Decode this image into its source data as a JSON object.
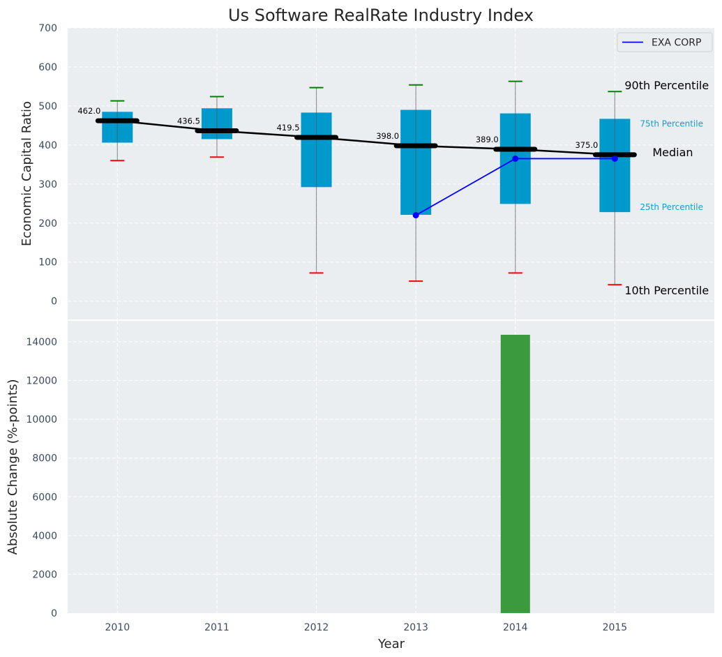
{
  "chart_data": [
    {
      "type": "box",
      "title": "Us Software RealRate Industry Index",
      "xlabel": "",
      "ylabel": "Economic Capital Ratio",
      "ylim": [
        -47,
        700
      ],
      "xlim": [
        2009.5,
        2016
      ],
      "yticks": [
        0,
        100,
        200,
        300,
        400,
        500,
        600,
        700
      ],
      "categories": [
        "2010",
        "2011",
        "2012",
        "2013",
        "2014",
        "2015"
      ],
      "x": [
        2010,
        2011,
        2012,
        2013,
        2014,
        2015
      ],
      "p10": [
        360,
        369,
        72,
        51,
        72,
        42
      ],
      "p25": [
        406,
        415,
        292,
        221,
        249,
        228
      ],
      "median": [
        462.0,
        436.5,
        419.5,
        398.0,
        389.0,
        375.0
      ],
      "p75": [
        485,
        494,
        483,
        490,
        481,
        467
      ],
      "p90": [
        513,
        524,
        547,
        554,
        563,
        537
      ],
      "median_labels": [
        "462.0",
        "436.5",
        "419.5",
        "398.0",
        "389.0",
        "375.0"
      ],
      "series": [
        {
          "name": "EXA CORP",
          "x": [
            2013,
            2014,
            2015
          ],
          "values": [
            220,
            365,
            365
          ],
          "color": "#0000ff"
        }
      ],
      "annotations": {
        "p90": "90th Percentile",
        "p75": "75th Percentile",
        "median": "Median",
        "p25": "25th Percentile",
        "p10": "10th Percentile"
      },
      "legend": {
        "position": "top-right",
        "entries": [
          "EXA CORP"
        ]
      },
      "colors": {
        "box": "#0099cc",
        "p90": "#008000",
        "p10": "#ff0000",
        "median": "#000000",
        "background": "#eaeef0"
      },
      "grid": true
    },
    {
      "type": "bar",
      "xlabel": "Year",
      "ylabel": "Absolute Change (%-points)",
      "ylim": [
        0,
        15080
      ],
      "xlim": [
        2009.5,
        2016
      ],
      "yticks": [
        0,
        2000,
        4000,
        6000,
        8000,
        10000,
        12000,
        14000
      ],
      "categories": [
        "2010",
        "2011",
        "2012",
        "2013",
        "2014",
        "2015"
      ],
      "x": [
        2010,
        2011,
        2012,
        2013,
        2014,
        2015
      ],
      "values": [
        0,
        0,
        0,
        0,
        14360,
        0
      ],
      "colors": {
        "bar": "#3a9a3e"
      },
      "grid": true
    }
  ]
}
